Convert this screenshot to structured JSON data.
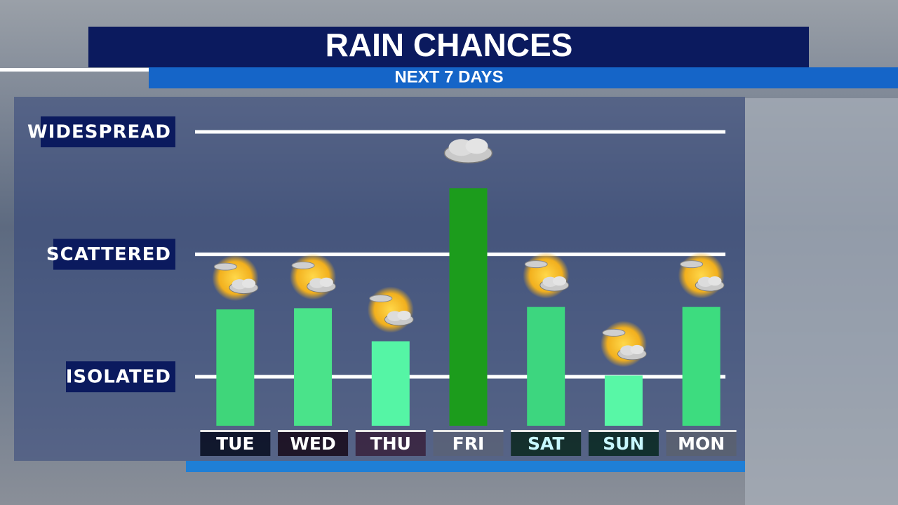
{
  "chart_data": {
    "type": "bar",
    "title": "RAIN CHANCES",
    "subtitle": "NEXT 7 DAYS",
    "categories": [
      "TUE",
      "WED",
      "THU",
      "FRI",
      "SAT",
      "SUN",
      "MON"
    ],
    "values": [
      1.55,
      1.56,
      1.29,
      2.54,
      1.57,
      1.01,
      1.57
    ],
    "colors": [
      "#3fd67a",
      "#4ae38a",
      "#55f5a5",
      "#1c9c1c",
      "#3dd67f",
      "#58f7a6",
      "#3ddc7f"
    ],
    "ylim": [
      0.6,
      3
    ],
    "yticks": [
      {
        "value": 1,
        "label": "ISOLATED"
      },
      {
        "value": 2,
        "label": "SCATTERED"
      },
      {
        "value": 3,
        "label": "WIDESPREAD"
      }
    ],
    "grid": true
  }
}
